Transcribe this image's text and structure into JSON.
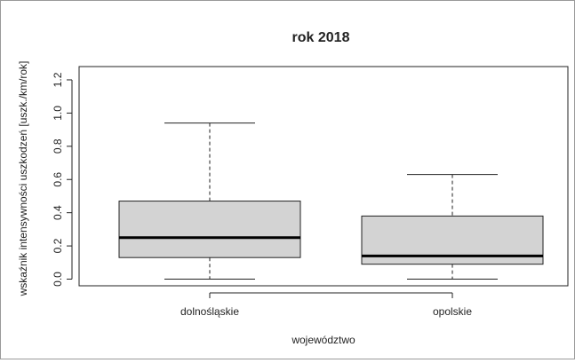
{
  "chart_data": {
    "type": "boxplot",
    "title": "rok 2018",
    "xlabel": "województwo",
    "ylabel": "wskaźnik intensywności uszkodzeń [uszk./km/rok]",
    "ylim": [
      -0.04,
      1.28
    ],
    "yticks": [
      "0.0",
      "0.2",
      "0.4",
      "0.6",
      "0.8",
      "1.0",
      "1.2"
    ],
    "yticks_values": [
      0,
      0.2,
      0.4,
      0.6,
      0.8,
      1.0,
      1.2
    ],
    "categories": [
      "dolnośląskie",
      "opolskie"
    ],
    "boxes": [
      {
        "whisker_low": 0.0,
        "q1": 0.13,
        "median": 0.25,
        "q3": 0.47,
        "whisker_high": 0.94
      },
      {
        "whisker_low": 0.0,
        "q1": 0.09,
        "median": 0.14,
        "q3": 0.38,
        "whisker_high": 0.63
      }
    ],
    "grid": false,
    "legend": "none",
    "box_fill": "#d3d3d3"
  }
}
